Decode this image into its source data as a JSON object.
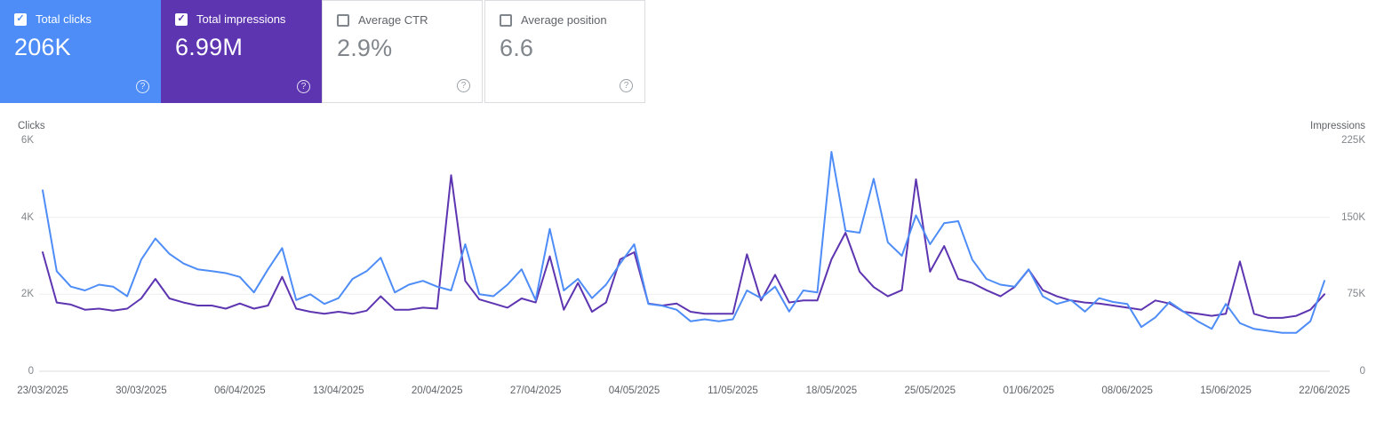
{
  "cards": [
    {
      "label": "Total clicks",
      "value": "206K",
      "selected": true,
      "color": "#4e8df7"
    },
    {
      "label": "Total impressions",
      "value": "6.99M",
      "selected": true,
      "color": "#5e35b1"
    },
    {
      "label": "Average CTR",
      "value": "2.9%",
      "selected": false
    },
    {
      "label": "Average position",
      "value": "6.6",
      "selected": false
    }
  ],
  "help_icon_glyph": "?",
  "chart_data": {
    "type": "line",
    "num_points": 92,
    "x_tick_indices": [
      0,
      7,
      14,
      21,
      28,
      35,
      42,
      49,
      56,
      63,
      70,
      77,
      84,
      91
    ],
    "x_tick_labels": [
      "23/03/2025",
      "30/03/2025",
      "06/04/2025",
      "13/04/2025",
      "20/04/2025",
      "27/04/2025",
      "04/05/2025",
      "11/05/2025",
      "18/05/2025",
      "25/05/2025",
      "01/06/2025",
      "08/06/2025",
      "15/06/2025",
      "22/06/2025"
    ],
    "left_axis": {
      "title": "Clicks",
      "max": 6000,
      "ticks": [
        {
          "value": 6000,
          "label": "6K"
        },
        {
          "value": 4000,
          "label": "4K"
        },
        {
          "value": 2000,
          "label": "2K"
        },
        {
          "value": 0,
          "label": "0"
        }
      ]
    },
    "right_axis": {
      "title": "Impressions",
      "max": 225000,
      "ticks": [
        {
          "value": 225000,
          "label": "225K"
        },
        {
          "value": 150000,
          "label": "150K"
        },
        {
          "value": 75000,
          "label": "75K"
        },
        {
          "value": 0,
          "label": "0"
        }
      ]
    },
    "grid": {
      "baseline_color": "#dadce0",
      "gridline_color": "#ebedef",
      "grid_on": true,
      "legend": "none"
    },
    "series": [
      {
        "name": "Clicks",
        "axis": "left",
        "color": "#4e8df7",
        "values": [
          4700,
          2600,
          2200,
          2100,
          2250,
          2200,
          1950,
          2900,
          3450,
          3050,
          2800,
          2650,
          2600,
          2550,
          2450,
          2050,
          2650,
          3200,
          1850,
          2000,
          1750,
          1900,
          2400,
          2600,
          2950,
          2050,
          2250,
          2350,
          2200,
          2100,
          3300,
          2000,
          1950,
          2250,
          2650,
          1850,
          3700,
          2100,
          2400,
          1900,
          2250,
          2800,
          3300,
          1750,
          1700,
          1600,
          1300,
          1350,
          1300,
          1350,
          2100,
          1900,
          2200,
          1550,
          2100,
          2050,
          5700,
          3650,
          3600,
          5000,
          3350,
          3000,
          4050,
          3300,
          3850,
          3900,
          2900,
          2400,
          2250,
          2200,
          2650,
          1950,
          1750,
          1850,
          1550,
          1900,
          1800,
          1750,
          1150,
          1400,
          1800,
          1550,
          1300,
          1100,
          1750,
          1250,
          1100,
          1050,
          1000,
          1000,
          1300,
          2350
        ]
      },
      {
        "name": "Impressions",
        "axis": "right",
        "color": "#5e35b1",
        "values": [
          116000,
          67000,
          65000,
          60000,
          61000,
          59000,
          61000,
          71000,
          90000,
          71000,
          67000,
          64000,
          64000,
          61000,
          66000,
          61000,
          64000,
          92000,
          61000,
          58000,
          56000,
          58000,
          56000,
          59000,
          73000,
          60000,
          60000,
          62000,
          61000,
          191000,
          88000,
          70000,
          66000,
          62000,
          71000,
          67000,
          112000,
          60000,
          86000,
          58000,
          67000,
          109000,
          116000,
          66000,
          64000,
          66000,
          58000,
          56000,
          56000,
          56000,
          114000,
          69000,
          94000,
          67000,
          69000,
          69000,
          109000,
          135000,
          97000,
          82000,
          73000,
          79000,
          187000,
          97000,
          122000,
          90000,
          86000,
          79000,
          73000,
          82000,
          99000,
          79000,
          73000,
          69000,
          67000,
          66000,
          64000,
          62000,
          60000,
          69000,
          66000,
          58000,
          56000,
          54000,
          56000,
          107000,
          56000,
          52000,
          52000,
          54000,
          60000,
          75000
        ]
      }
    ]
  }
}
